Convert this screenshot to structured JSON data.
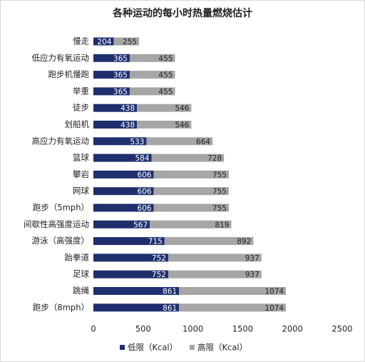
{
  "chart_data": {
    "type": "stacked-bar-horizontal",
    "title": "各种运动的每小时热量燃烧估计",
    "categories": [
      "慢走",
      "低应力有氧运动",
      "跑步机慢跑",
      "举重",
      "徒步",
      "划船机",
      "高应力有氧运动",
      "篮球",
      "攀岩",
      "网球",
      "跑步（5mph）",
      "间歇性高强度运动",
      "游泳（高强度）",
      "跆拳道",
      "足球",
      "跳绳",
      "跑步（8mph）"
    ],
    "series": [
      {
        "name": "低限（Kcal）",
        "color": "#1f2f6e",
        "values": [
          204,
          365,
          365,
          365,
          438,
          438,
          533,
          584,
          606,
          606,
          606,
          567,
          715,
          752,
          752,
          861,
          861
        ]
      },
      {
        "name": "高限（Kcal）",
        "color": "#a6a6a6",
        "values": [
          255,
          455,
          455,
          455,
          546,
          546,
          664,
          728,
          755,
          755,
          755,
          819,
          892,
          937,
          937,
          1074,
          1074
        ]
      }
    ],
    "xlim": [
      0,
      2500
    ],
    "xticks": [
      0,
      500,
      1000,
      1500,
      2000,
      2500
    ],
    "legend": "bottom"
  }
}
